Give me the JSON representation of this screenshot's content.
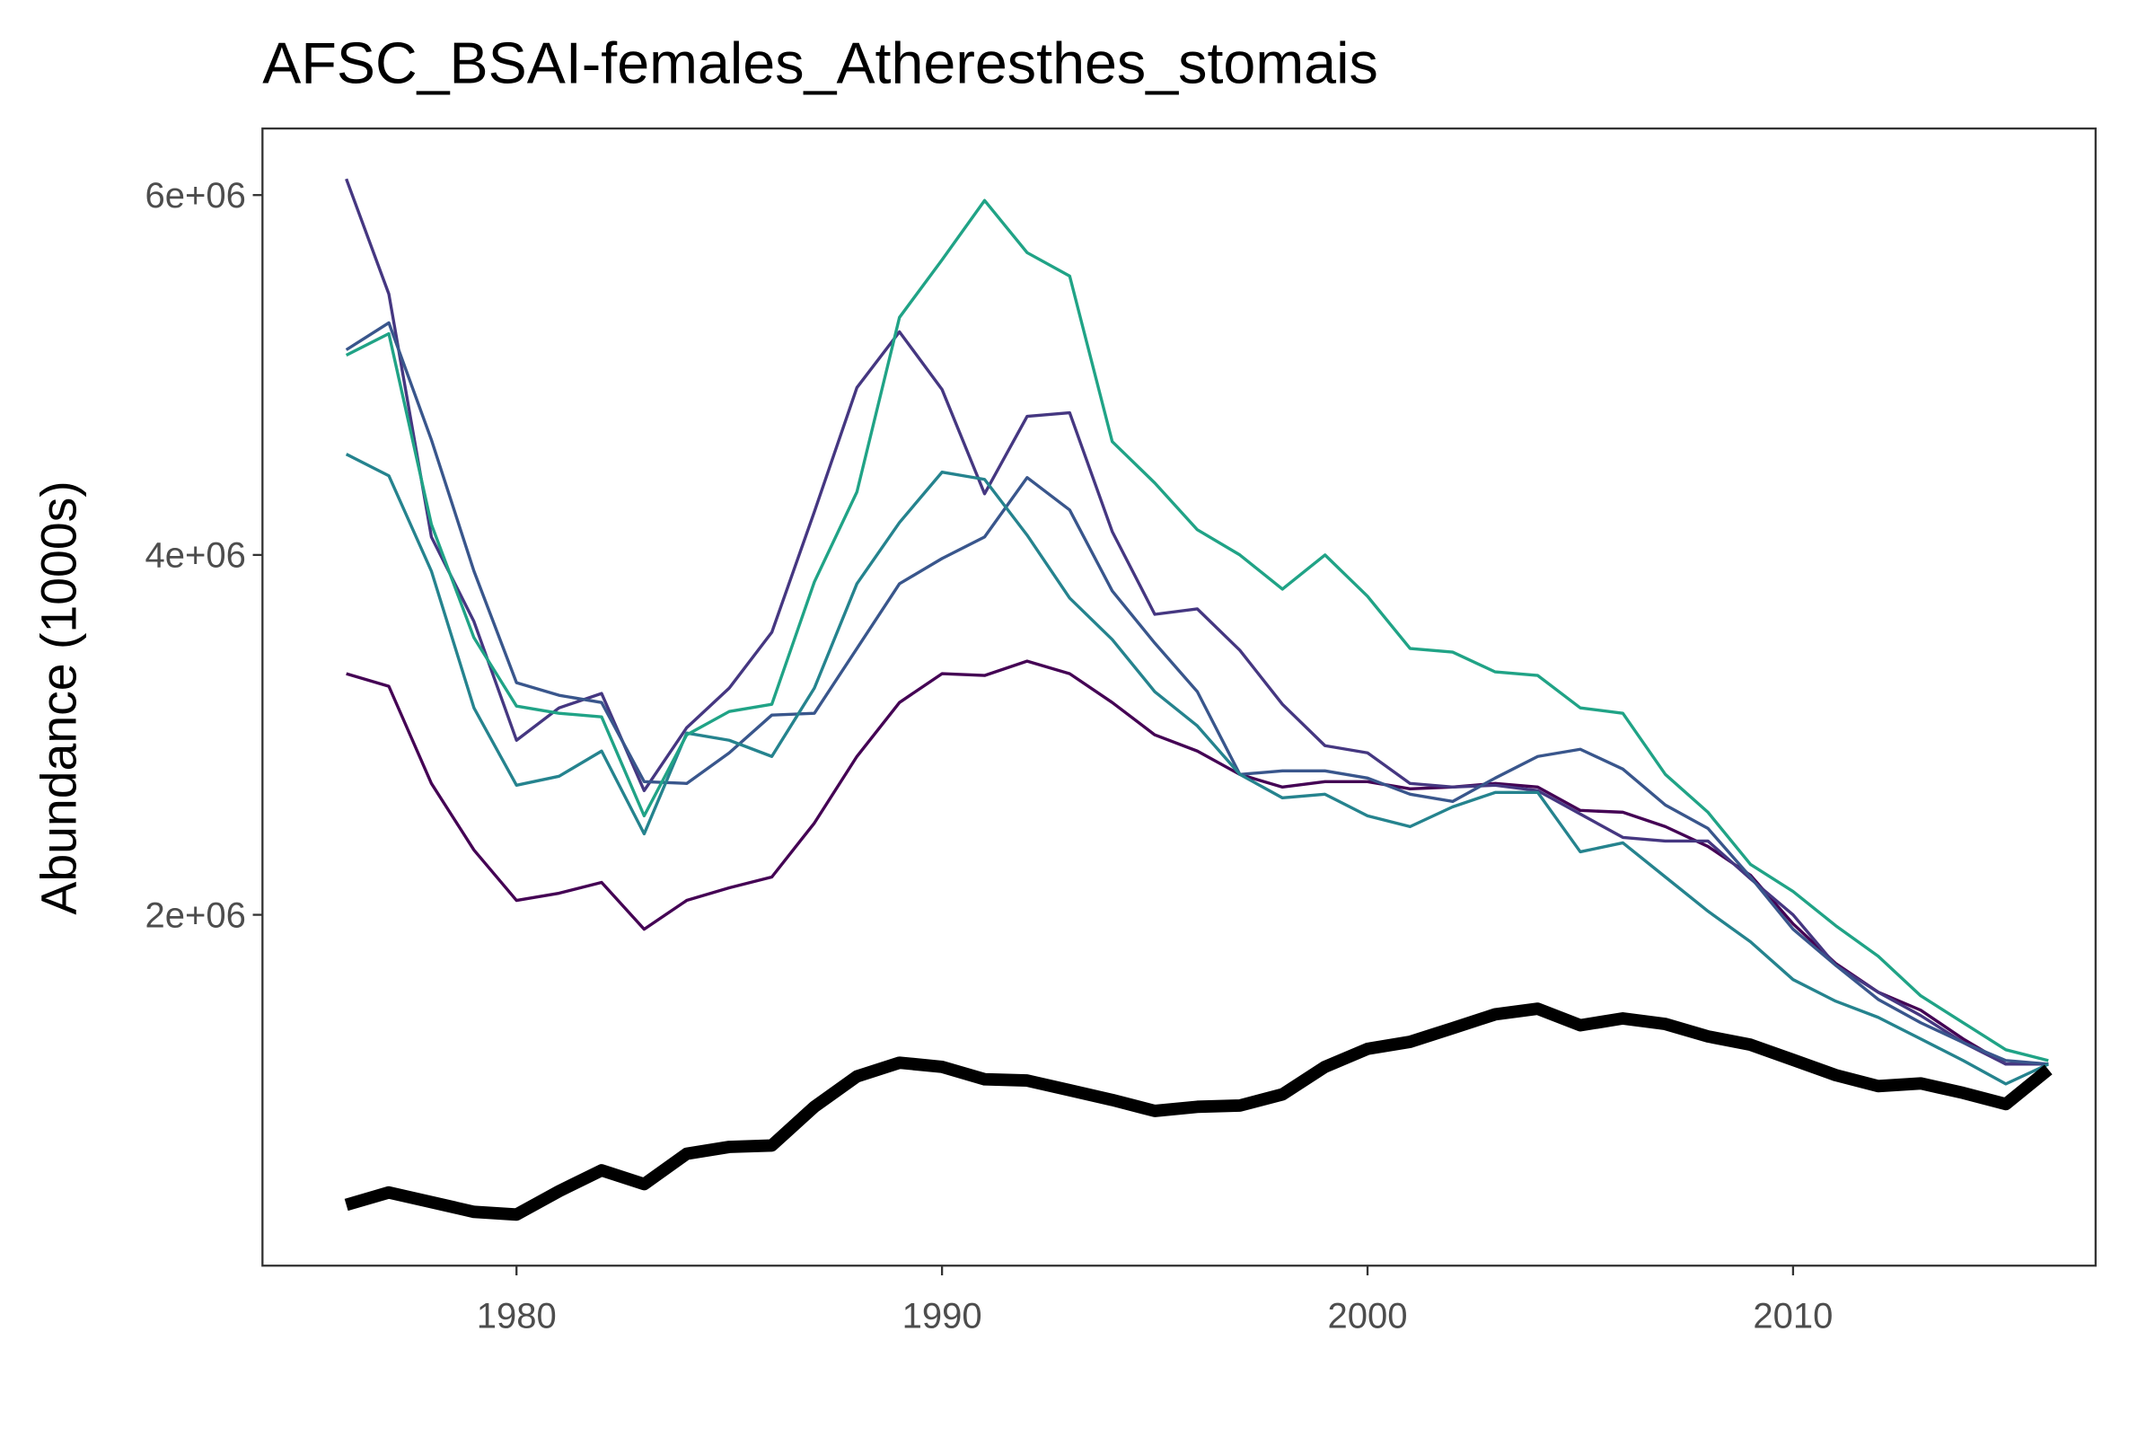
{
  "chart_data": {
    "type": "line",
    "title": "AFSC_BSAI-females_Atheresthes_stomais",
    "y_label": "Abundance (1000s)",
    "x": [
      1976,
      1977,
      1978,
      1979,
      1980,
      1981,
      1982,
      1983,
      1984,
      1985,
      1986,
      1987,
      1988,
      1989,
      1990,
      1991,
      1992,
      1993,
      1994,
      1995,
      1996,
      1997,
      1998,
      1999,
      2000,
      2001,
      2002,
      2003,
      2004,
      2005,
      2006,
      2007,
      2008,
      2009,
      2010,
      2011,
      2012,
      2013,
      2014,
      2015,
      2016
    ],
    "series": [
      {
        "color": "#440154",
        "width": 2.2,
        "values": [
          3340000,
          3270000,
          2730000,
          2360000,
          2080000,
          2120000,
          2180000,
          1920000,
          2080000,
          2150000,
          2210000,
          2510000,
          2880000,
          3180000,
          3340000,
          3330000,
          3410000,
          3340000,
          3180000,
          3000000,
          2910000,
          2780000,
          2710000,
          2740000,
          2740000,
          2700000,
          2710000,
          2730000,
          2710000,
          2580000,
          2570000,
          2490000,
          2380000,
          2220000,
          1950000,
          1730000,
          1570000,
          1470000,
          1310000,
          1170000,
          1170000
        ]
      },
      {
        "color": "#453781",
        "width": 2.2,
        "values": [
          6090000,
          5450000,
          4100000,
          3630000,
          2970000,
          3150000,
          3230000,
          2690000,
          3040000,
          3260000,
          3570000,
          4240000,
          4930000,
          5240000,
          4920000,
          4340000,
          4770000,
          4790000,
          4130000,
          3670000,
          3700000,
          3470000,
          3170000,
          2940000,
          2900000,
          2730000,
          2710000,
          2720000,
          2690000,
          2560000,
          2430000,
          2410000,
          2410000,
          2200000,
          2000000,
          1720000,
          1570000,
          1440000,
          1290000,
          1170000,
          1170000
        ]
      },
      {
        "color": "#39568c",
        "width": 2.2,
        "values": [
          5140000,
          5290000,
          4640000,
          3910000,
          3290000,
          3220000,
          3180000,
          2740000,
          2730000,
          2900000,
          3110000,
          3120000,
          3480000,
          3840000,
          3980000,
          4100000,
          4430000,
          4250000,
          3800000,
          3510000,
          3240000,
          2780000,
          2800000,
          2800000,
          2760000,
          2670000,
          2630000,
          2760000,
          2880000,
          2920000,
          2810000,
          2610000,
          2480000,
          2210000,
          1920000,
          1720000,
          1530000,
          1400000,
          1290000,
          1190000,
          1170000
        ]
      },
      {
        "color": "#25838e",
        "width": 2.2,
        "values": [
          4560000,
          4440000,
          3910000,
          3150000,
          2720000,
          2770000,
          2910000,
          2450000,
          3010000,
          2970000,
          2880000,
          3260000,
          3840000,
          4180000,
          4460000,
          4420000,
          4110000,
          3760000,
          3530000,
          3240000,
          3050000,
          2780000,
          2650000,
          2670000,
          2550000,
          2490000,
          2600000,
          2680000,
          2680000,
          2350000,
          2400000,
          2210000,
          2020000,
          1850000,
          1640000,
          1520000,
          1430000,
          1310000,
          1190000,
          1060000,
          1170000
        ]
      },
      {
        "color": "#20a386",
        "width": 2.2,
        "values": [
          5110000,
          5230000,
          4170000,
          3540000,
          3160000,
          3120000,
          3100000,
          2550000,
          3000000,
          3130000,
          3170000,
          3850000,
          4350000,
          5320000,
          5640000,
          5970000,
          5680000,
          5550000,
          4630000,
          4400000,
          4140000,
          4000000,
          3810000,
          4000000,
          3770000,
          3480000,
          3460000,
          3350000,
          3330000,
          3150000,
          3120000,
          2780000,
          2570000,
          2280000,
          2130000,
          1940000,
          1770000,
          1550000,
          1400000,
          1250000,
          1190000
        ]
      },
      {
        "color": "#000000",
        "width": 9,
        "values": [
          388000,
          457000,
          403000,
          349000,
          334000,
          464000,
          580000,
          503000,
          672000,
          710000,
          718000,
          933000,
          1102000,
          1178000,
          1155000,
          1086000,
          1079000,
          1025000,
          971000,
          910000,
          933000,
          940000,
          1002000,
          1155000,
          1255000,
          1294000,
          1370000,
          1447000,
          1478000,
          1386000,
          1424000,
          1393000,
          1324000,
          1278000,
          1194000,
          1109000,
          1048000,
          1063000,
          1010000,
          948000,
          1140000
        ]
      }
    ],
    "xlim": [
      1974.03,
      2017.11
    ],
    "xticks": [
      1980,
      1990,
      2000,
      2010
    ],
    "ylim": [
      50000,
      6370000
    ],
    "yticks": [
      {
        "value": 2000000,
        "label": "2e+06"
      },
      {
        "value": 4000000,
        "label": "4e+06"
      },
      {
        "value": 6000000,
        "label": "6e+06"
      }
    ]
  }
}
